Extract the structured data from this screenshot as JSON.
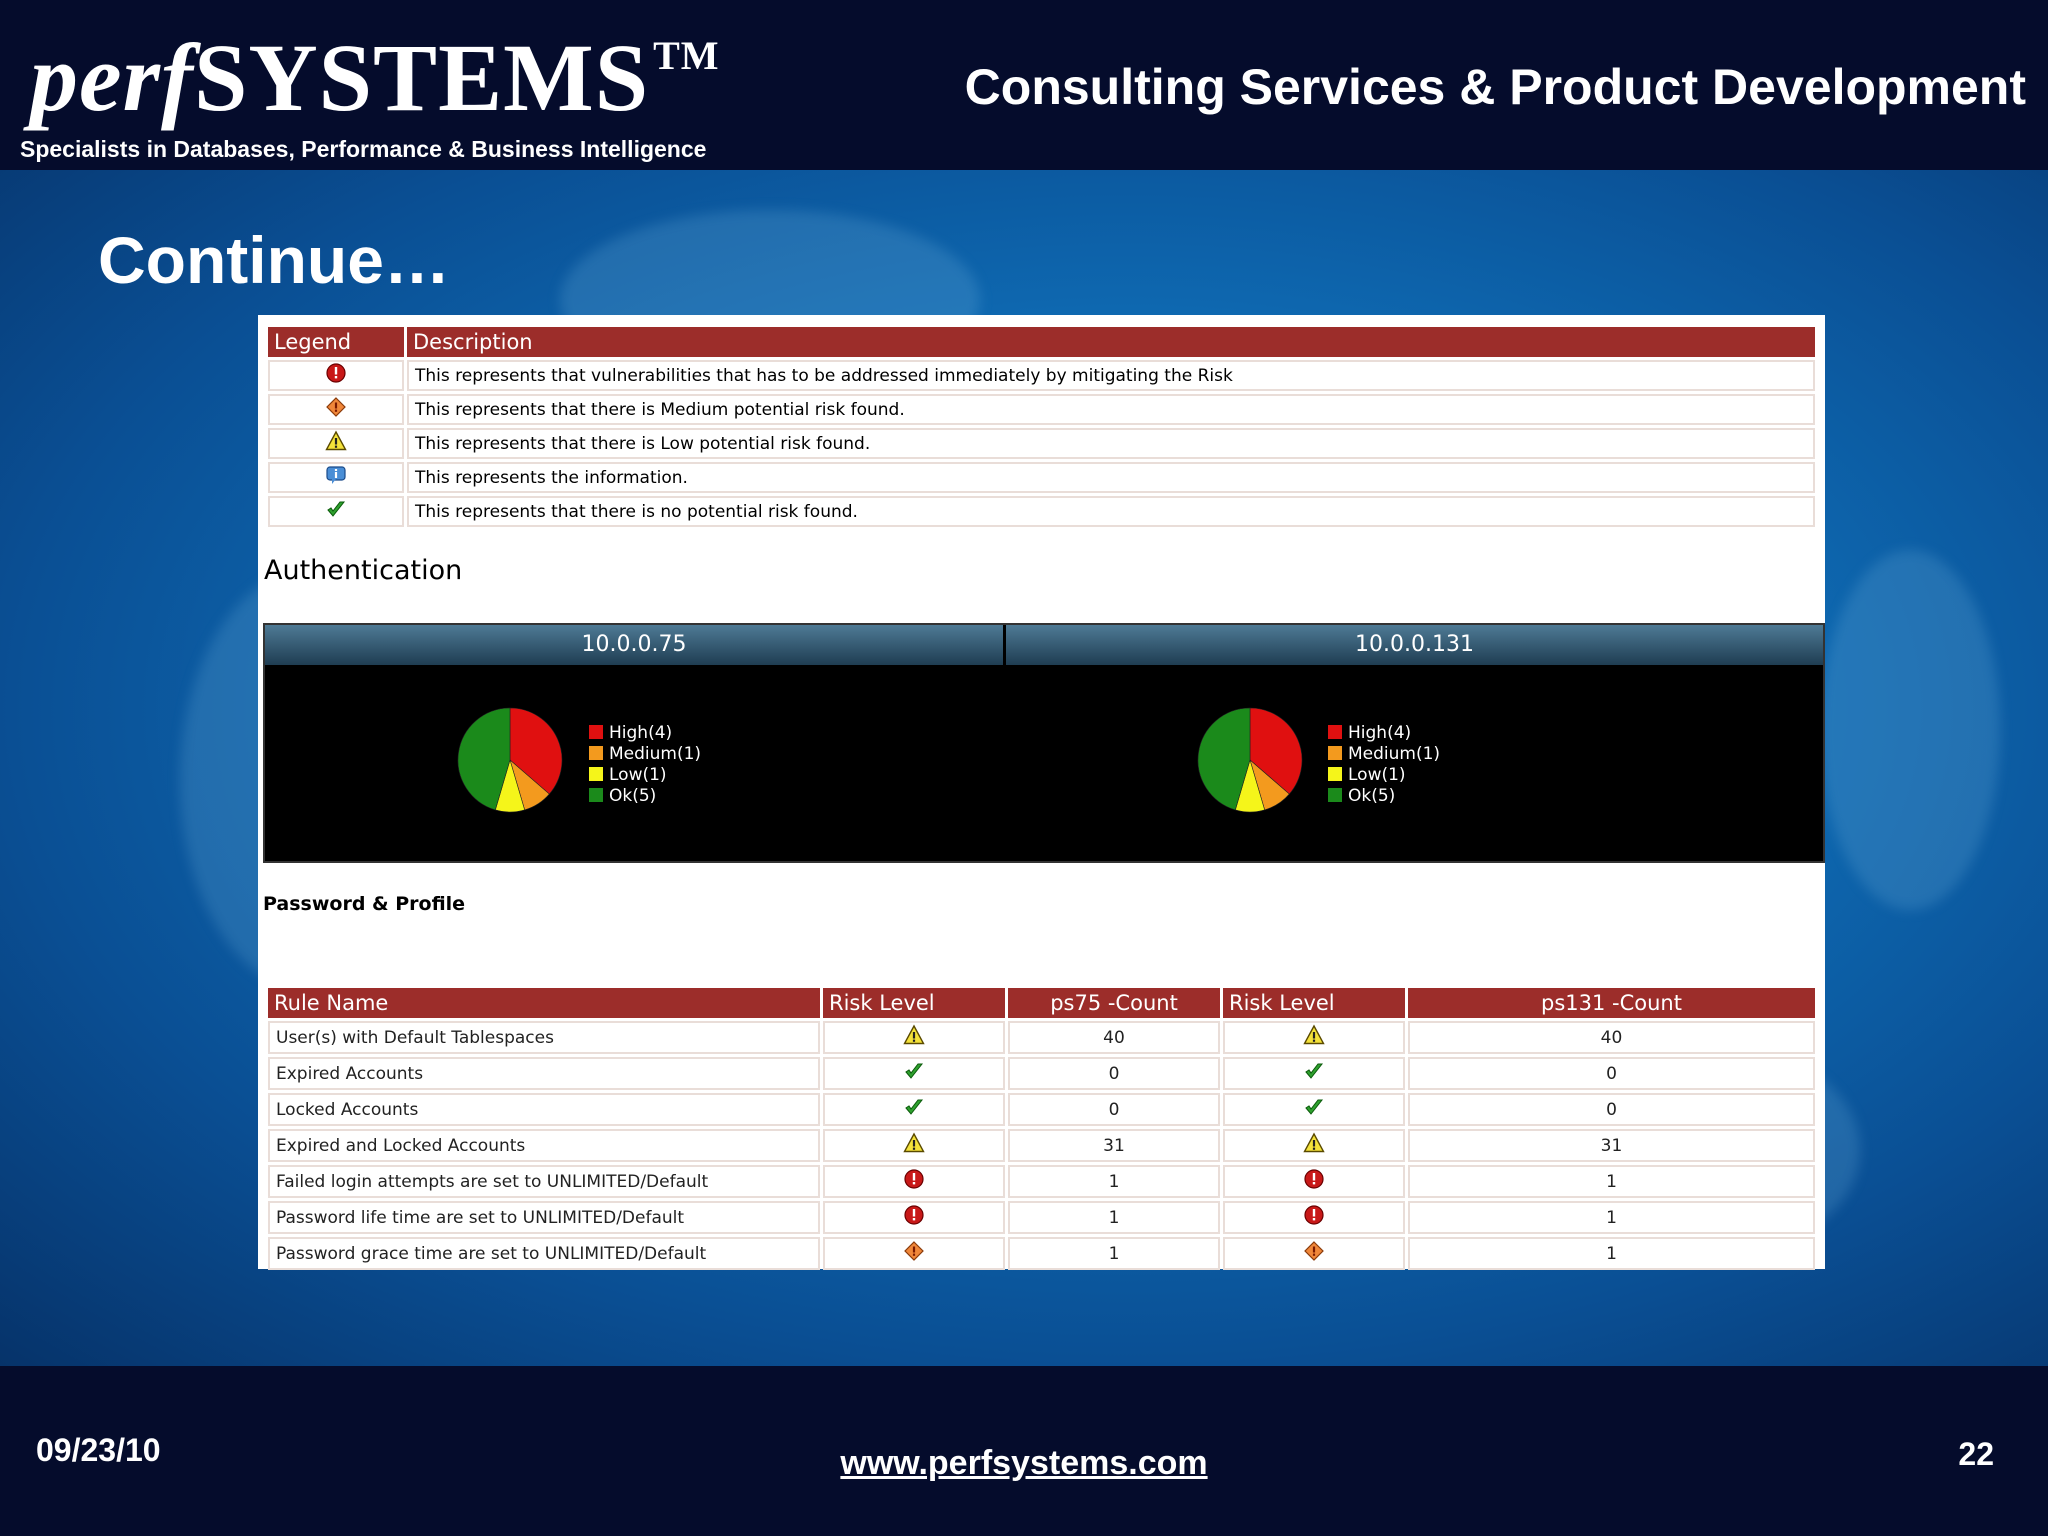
{
  "header": {
    "logo_prefix": "perf",
    "logo_main": "SYSTEMS",
    "logo_tm": "TM",
    "tagline": "Specialists in Databases, Performance & Business Intelligence",
    "right_title": "Consulting Services & Product Development"
  },
  "slide": {
    "title": "Continue…"
  },
  "legend_table": {
    "headers": [
      "Legend",
      "Description"
    ],
    "rows": [
      {
        "icon": "high-risk-icon",
        "desc": "This represents that vulnerabilities that has to be addressed immediately by mitigating the Risk"
      },
      {
        "icon": "medium-risk-icon",
        "desc": "This represents that there is Medium potential risk found."
      },
      {
        "icon": "low-risk-icon",
        "desc": "This represents that there is Low potential risk found."
      },
      {
        "icon": "info-icon",
        "desc": "This represents the information."
      },
      {
        "icon": "ok-icon",
        "desc": "This represents that there is no potential risk found."
      }
    ]
  },
  "authentication": {
    "heading": "Authentication",
    "hosts": [
      "10.0.0.75",
      "10.0.0.131"
    ]
  },
  "chart_data": [
    {
      "type": "pie",
      "title": "10.0.0.75",
      "categories": [
        "High(4)",
        "Medium(1)",
        "Low(1)",
        "Ok(5)"
      ],
      "values": [
        4,
        1,
        1,
        5
      ],
      "colors": [
        "#e01010",
        "#f39a1e",
        "#f5f51a",
        "#1b8a1b"
      ],
      "legend": "right"
    },
    {
      "type": "pie",
      "title": "10.0.0.131",
      "categories": [
        "High(4)",
        "Medium(1)",
        "Low(1)",
        "Ok(5)"
      ],
      "values": [
        4,
        1,
        1,
        5
      ],
      "colors": [
        "#e01010",
        "#f39a1e",
        "#f5f51a",
        "#1b8a1b"
      ],
      "legend": "right"
    }
  ],
  "password_profile": {
    "heading": "Password & Profile",
    "headers": [
      "Rule Name",
      "Risk Level",
      "ps75 -Count",
      "Risk Level",
      "ps131 -Count"
    ],
    "rows": [
      {
        "name": "User(s) with Default Tablespaces",
        "risk75": "low-risk-icon",
        "count75": "40",
        "risk131": "low-risk-icon",
        "count131": "40"
      },
      {
        "name": "Expired Accounts",
        "risk75": "ok-icon",
        "count75": "0",
        "risk131": "ok-icon",
        "count131": "0"
      },
      {
        "name": "Locked Accounts",
        "risk75": "ok-icon",
        "count75": "0",
        "risk131": "ok-icon",
        "count131": "0"
      },
      {
        "name": "Expired and Locked Accounts",
        "risk75": "low-risk-icon",
        "count75": "31",
        "risk131": "low-risk-icon",
        "count131": "31"
      },
      {
        "name": "Failed login attempts are set to UNLIMITED/Default",
        "risk75": "high-risk-icon",
        "count75": "1",
        "risk131": "high-risk-icon",
        "count131": "1"
      },
      {
        "name": "Password life time are set to UNLIMITED/Default",
        "risk75": "high-risk-icon",
        "count75": "1",
        "risk131": "high-risk-icon",
        "count131": "1"
      },
      {
        "name": "Password grace time are set to UNLIMITED/Default",
        "risk75": "medium-risk-icon",
        "count75": "1",
        "risk131": "medium-risk-icon",
        "count131": "1"
      }
    ]
  },
  "footer": {
    "date": "09/23/10",
    "url": "www.perfsystems.com",
    "page": "22"
  }
}
